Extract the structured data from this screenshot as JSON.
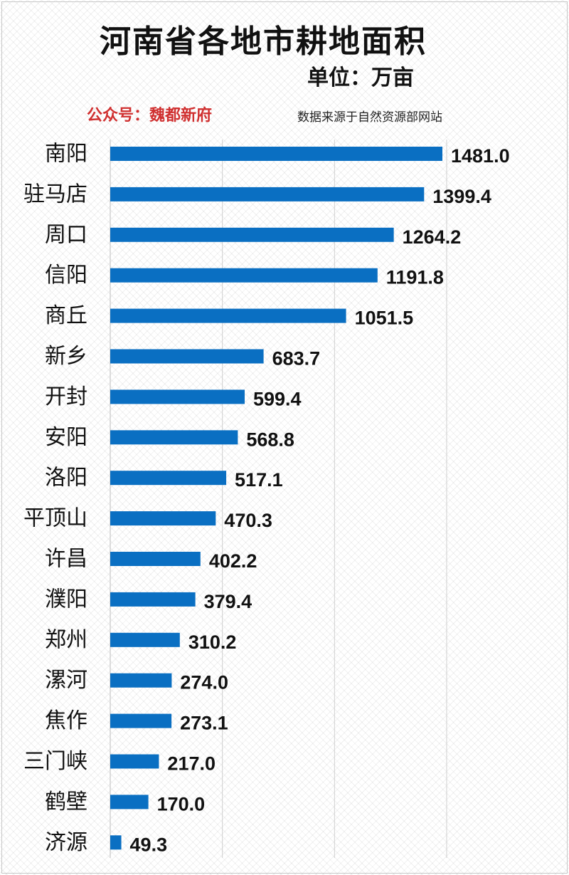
{
  "header": {
    "title": "河南省各地市耕地面积",
    "unit": "单位：万亩",
    "wechat": "公众号：魏都新府",
    "source": "数据来源于自然资源部网站"
  },
  "chart_data": {
    "type": "bar",
    "orientation": "horizontal",
    "title": "河南省各地市耕地面积",
    "unit": "万亩",
    "categories": [
      "南阳",
      "驻马店",
      "周口",
      "信阳",
      "商丘",
      "新乡",
      "开封",
      "安阳",
      "洛阳",
      "平顶山",
      "许昌",
      "濮阳",
      "郑州",
      "漯河",
      "焦作",
      "三门峡",
      "鹤壁",
      "济源"
    ],
    "values": [
      1481.0,
      1399.4,
      1264.2,
      1191.8,
      1051.5,
      683.7,
      599.4,
      568.8,
      517.1,
      470.3,
      402.2,
      379.4,
      310.2,
      274.0,
      273.1,
      217.0,
      170.0,
      49.3
    ],
    "labels": [
      "1481.0",
      "1399.4",
      "1264.2",
      "1191.8",
      "1051.5",
      "683.7",
      "599.4",
      "568.8",
      "517.1",
      "470.3",
      "402.2",
      "379.4",
      "310.2",
      "274.0",
      "273.1",
      "217.0",
      "170.0",
      "49.3"
    ],
    "xlim": [
      0,
      1500
    ],
    "grid": true,
    "bar_color": "#0a6fc2"
  }
}
